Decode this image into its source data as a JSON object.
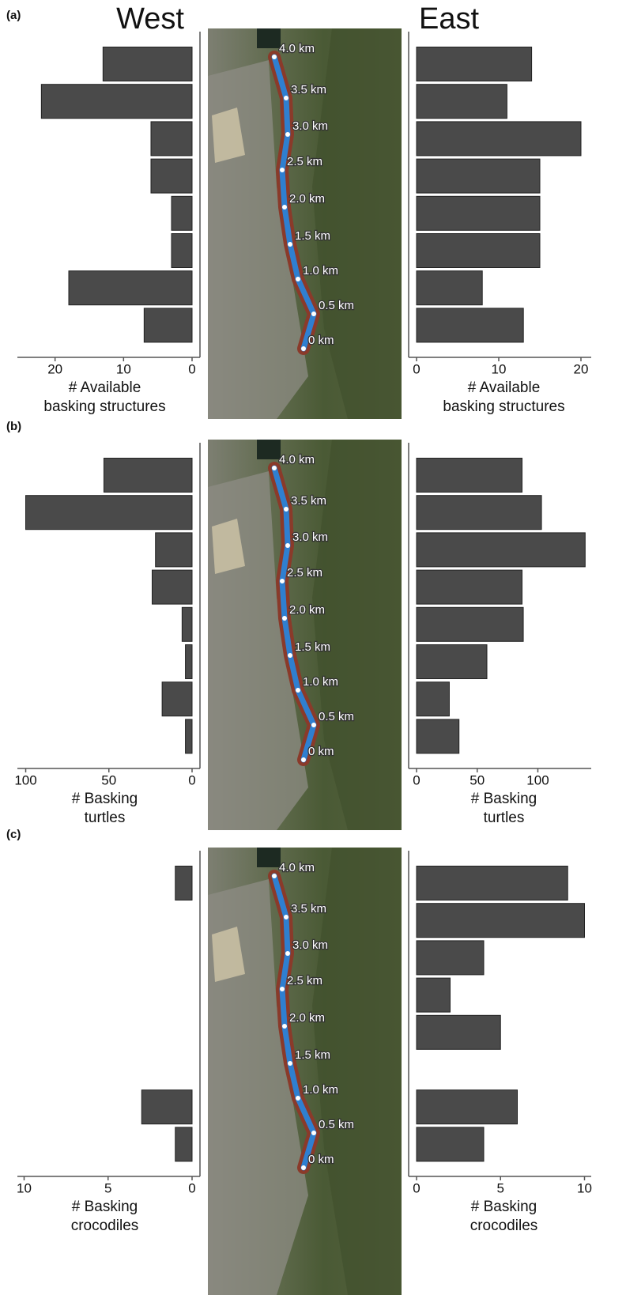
{
  "map": {
    "labels": [
      "4.0 km",
      "3.5 km",
      "3.0 km",
      "2.5 km",
      "2.0 km",
      "1.5 km",
      "1.0 km",
      "0.5 km",
      "0 km"
    ]
  },
  "chart_data": [
    {
      "type": "bar",
      "panel_label": "(a)",
      "title": "West",
      "x_reversed": true,
      "color": "#4a4a4a",
      "values": [
        13,
        22,
        6,
        6,
        3,
        3,
        18,
        7
      ],
      "xlim": [
        0,
        25.5
      ],
      "xticks": [
        0,
        10,
        20
      ],
      "xlabel": [
        "# Available",
        "basking structures"
      ]
    },
    {
      "type": "bar",
      "title": "East",
      "x_reversed": false,
      "color": "#4a4a4a",
      "values": [
        14,
        11,
        20,
        15,
        15,
        15,
        8,
        13
      ],
      "xlim": [
        0,
        21.25
      ],
      "xticks": [
        0,
        10,
        20
      ],
      "xlabel": [
        "# Available",
        "basking structures"
      ]
    },
    {
      "type": "bar",
      "panel_label": "(b)",
      "x_reversed": true,
      "color": "#4a4a4a",
      "values": [
        53,
        100,
        22,
        24,
        6,
        4,
        18,
        4
      ],
      "xlim": [
        0,
        105
      ],
      "xticks": [
        0,
        50,
        100
      ],
      "xlabel": [
        "# Basking",
        "turtles"
      ]
    },
    {
      "type": "bar",
      "x_reversed": false,
      "color": "#4a4a4a",
      "values": [
        87,
        103,
        139,
        87,
        88,
        58,
        27,
        35
      ],
      "xlim": [
        0,
        144
      ],
      "xticks": [
        0,
        50,
        100
      ],
      "xlabel": [
        "# Basking",
        "turtles"
      ]
    },
    {
      "type": "bar",
      "panel_label": "(c)",
      "x_reversed": true,
      "color": "#4a4a4a",
      "values": [
        1,
        0,
        0,
        0,
        0,
        0,
        3,
        1
      ],
      "xlim": [
        0,
        10.4
      ],
      "xticks": [
        0,
        5,
        10
      ],
      "xlabel": [
        "# Basking",
        "crocodiles"
      ]
    },
    {
      "type": "bar",
      "x_reversed": false,
      "color": "#4a4a4a",
      "values": [
        9,
        10,
        4,
        2,
        5,
        0,
        6,
        4
      ],
      "xlim": [
        0,
        10.4
      ],
      "xticks": [
        0,
        5,
        10
      ],
      "xlabel": [
        "# Basking",
        "crocodiles"
      ]
    }
  ]
}
